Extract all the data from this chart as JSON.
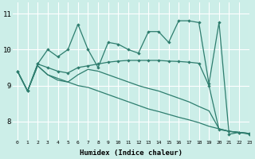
{
  "bg_color": "#cceee8",
  "grid_color": "#ffffff",
  "line_color": "#2e7d6e",
  "xlabel": "Humidex (Indice chaleur)",
  "xlim": [
    -0.5,
    23
  ],
  "ylim": [
    7.5,
    11.3
  ],
  "yticks": [
    8,
    9,
    10,
    11
  ],
  "xticks": [
    0,
    1,
    2,
    3,
    4,
    5,
    6,
    7,
    8,
    9,
    10,
    11,
    12,
    13,
    14,
    15,
    16,
    17,
    18,
    19,
    20,
    21,
    22,
    23
  ],
  "line1_x": [
    0,
    1,
    2,
    3,
    4,
    5,
    6,
    7,
    8,
    9,
    10,
    11,
    12,
    13,
    14,
    15,
    16,
    17,
    18,
    19,
    20,
    21,
    22,
    23
  ],
  "line1_y": [
    9.4,
    8.85,
    9.6,
    10.0,
    9.8,
    10.0,
    10.7,
    10.0,
    9.5,
    10.2,
    10.15,
    10.0,
    9.9,
    10.5,
    10.5,
    10.2,
    10.8,
    10.8,
    10.75,
    9.05,
    10.75,
    7.65,
    7.7,
    7.65
  ],
  "line2_x": [
    0,
    1,
    2,
    3,
    4,
    5,
    6,
    7,
    8,
    9,
    10,
    11,
    12,
    13,
    14,
    15,
    16,
    17,
    18,
    19,
    20,
    21,
    22,
    23
  ],
  "line2_y": [
    9.4,
    8.85,
    9.6,
    9.5,
    9.4,
    9.35,
    9.5,
    9.55,
    9.6,
    9.65,
    9.68,
    9.7,
    9.7,
    9.7,
    9.7,
    9.68,
    9.67,
    9.65,
    9.62,
    9.0,
    7.78,
    7.73,
    7.7,
    7.67
  ],
  "line3_x": [
    0,
    1,
    2,
    3,
    4,
    5,
    6,
    7,
    8,
    9,
    10,
    11,
    12,
    13,
    14,
    15,
    16,
    17,
    18,
    19,
    20,
    21,
    22,
    23
  ],
  "line3_y": [
    9.4,
    8.85,
    9.55,
    9.3,
    9.2,
    9.1,
    9.0,
    8.95,
    8.85,
    8.75,
    8.65,
    8.55,
    8.45,
    8.35,
    8.28,
    8.2,
    8.12,
    8.05,
    7.97,
    7.87,
    7.8,
    7.73,
    7.7,
    7.67
  ],
  "line4_x": [
    0,
    1,
    2,
    3,
    4,
    5,
    6,
    7,
    8,
    9,
    10,
    11,
    12,
    13,
    14,
    15,
    16,
    17,
    18,
    19,
    20,
    21,
    22,
    23
  ],
  "line4_y": [
    9.4,
    8.85,
    9.55,
    9.3,
    9.15,
    9.1,
    9.3,
    9.45,
    9.4,
    9.3,
    9.2,
    9.1,
    9.0,
    8.92,
    8.85,
    8.75,
    8.65,
    8.55,
    8.42,
    8.3,
    7.8,
    7.73,
    7.7,
    7.67
  ]
}
